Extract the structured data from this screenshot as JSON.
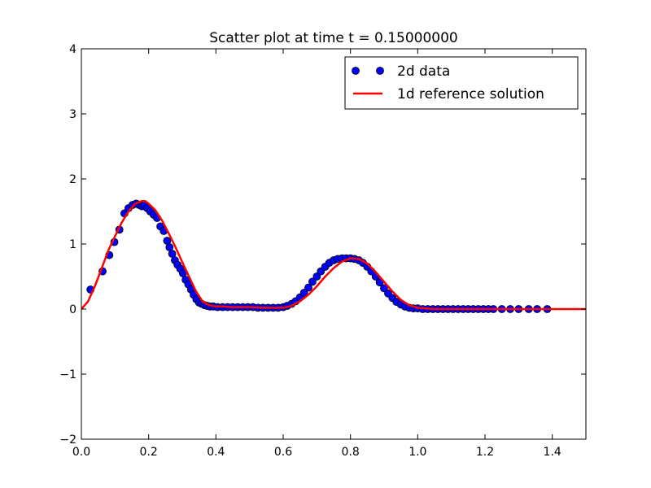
{
  "chart_data": {
    "type": "scatter",
    "title": "Scatter plot at time t =     0.15000000",
    "xlabel": "",
    "ylabel": "",
    "xlim": [
      0,
      1.5
    ],
    "ylim": [
      -2,
      4
    ],
    "x_ticks": [
      0.0,
      0.2,
      0.4,
      0.6,
      0.8,
      1.0,
      1.2,
      1.4
    ],
    "x_tick_labels": [
      "0.0",
      "0.2",
      "0.4",
      "0.6",
      "0.8",
      "1.0",
      "1.2",
      "1.4"
    ],
    "y_ticks": [
      -2,
      -1,
      0,
      1,
      2,
      3,
      4
    ],
    "y_tick_labels": [
      "−2",
      "−1",
      "0",
      "1",
      "2",
      "3",
      "4"
    ],
    "grid": false,
    "legend_position": "top-right",
    "series": [
      {
        "name": "2d data",
        "kind": "scatter",
        "color": "#0000ff",
        "x": [
          0.027,
          0.063,
          0.083,
          0.098,
          0.113,
          0.128,
          0.14,
          0.152,
          0.163,
          0.172,
          0.18,
          0.188,
          0.196,
          0.205,
          0.215,
          0.225,
          0.235,
          0.245,
          0.255,
          0.262,
          0.27,
          0.278,
          0.286,
          0.294,
          0.302,
          0.31,
          0.318,
          0.326,
          0.334,
          0.342,
          0.35,
          0.358,
          0.366,
          0.374,
          0.382,
          0.392,
          0.405,
          0.42,
          0.435,
          0.45,
          0.465,
          0.48,
          0.495,
          0.51,
          0.525,
          0.54,
          0.555,
          0.57,
          0.585,
          0.6,
          0.612,
          0.625,
          0.637,
          0.65,
          0.662,
          0.675,
          0.687,
          0.7,
          0.712,
          0.725,
          0.737,
          0.75,
          0.762,
          0.775,
          0.787,
          0.8,
          0.812,
          0.825,
          0.837,
          0.85,
          0.862,
          0.875,
          0.887,
          0.9,
          0.912,
          0.925,
          0.937,
          0.95,
          0.962,
          0.975,
          0.987,
          1.0,
          1.015,
          1.03,
          1.045,
          1.06,
          1.075,
          1.09,
          1.105,
          1.12,
          1.135,
          1.15,
          1.165,
          1.18,
          1.195,
          1.21,
          1.225,
          1.25,
          1.275,
          1.3,
          1.33,
          1.355,
          1.385
        ],
        "y": [
          0.3,
          0.58,
          0.83,
          1.03,
          1.22,
          1.47,
          1.55,
          1.6,
          1.62,
          1.6,
          1.58,
          1.6,
          1.55,
          1.5,
          1.45,
          1.4,
          1.27,
          1.2,
          1.05,
          0.95,
          0.85,
          0.75,
          0.68,
          0.62,
          0.55,
          0.45,
          0.38,
          0.3,
          0.22,
          0.15,
          0.1,
          0.08,
          0.06,
          0.05,
          0.04,
          0.04,
          0.03,
          0.03,
          0.03,
          0.03,
          0.03,
          0.03,
          0.03,
          0.03,
          0.02,
          0.02,
          0.02,
          0.02,
          0.02,
          0.03,
          0.05,
          0.08,
          0.12,
          0.18,
          0.25,
          0.33,
          0.42,
          0.5,
          0.58,
          0.65,
          0.71,
          0.75,
          0.77,
          0.78,
          0.78,
          0.78,
          0.77,
          0.75,
          0.71,
          0.65,
          0.58,
          0.5,
          0.41,
          0.32,
          0.24,
          0.17,
          0.11,
          0.07,
          0.04,
          0.02,
          0.01,
          0.01,
          0.0,
          0.0,
          0.0,
          0.0,
          0.0,
          0.0,
          0.0,
          0.0,
          0.0,
          0.0,
          0.0,
          0.0,
          0.0,
          0.0,
          0.0,
          0.0,
          0.0,
          0.0,
          0.0,
          0.0,
          0.0
        ]
      },
      {
        "name": "1d reference solution",
        "kind": "line",
        "color": "#ff0000",
        "x": [
          0.0,
          0.02,
          0.04,
          0.06,
          0.08,
          0.1,
          0.12,
          0.14,
          0.16,
          0.18,
          0.19,
          0.2,
          0.22,
          0.24,
          0.26,
          0.28,
          0.3,
          0.32,
          0.34,
          0.36,
          0.38,
          0.4,
          0.42,
          0.45,
          0.5,
          0.55,
          0.6,
          0.625,
          0.65,
          0.675,
          0.7,
          0.725,
          0.75,
          0.775,
          0.8,
          0.825,
          0.85,
          0.875,
          0.9,
          0.925,
          0.95,
          0.975,
          1.0,
          1.025,
          1.05,
          1.1,
          1.2,
          1.3,
          1.4,
          1.5
        ],
        "y": [
          0.0,
          0.12,
          0.35,
          0.62,
          0.9,
          1.12,
          1.33,
          1.5,
          1.62,
          1.66,
          1.66,
          1.62,
          1.52,
          1.36,
          1.16,
          0.95,
          0.72,
          0.5,
          0.28,
          0.12,
          0.06,
          0.04,
          0.04,
          0.03,
          0.03,
          0.02,
          0.02,
          0.05,
          0.12,
          0.22,
          0.35,
          0.5,
          0.63,
          0.73,
          0.78,
          0.77,
          0.7,
          0.57,
          0.42,
          0.27,
          0.14,
          0.06,
          0.02,
          0.01,
          0.0,
          0.0,
          0.0,
          0.0,
          0.0,
          0.0
        ]
      }
    ]
  }
}
